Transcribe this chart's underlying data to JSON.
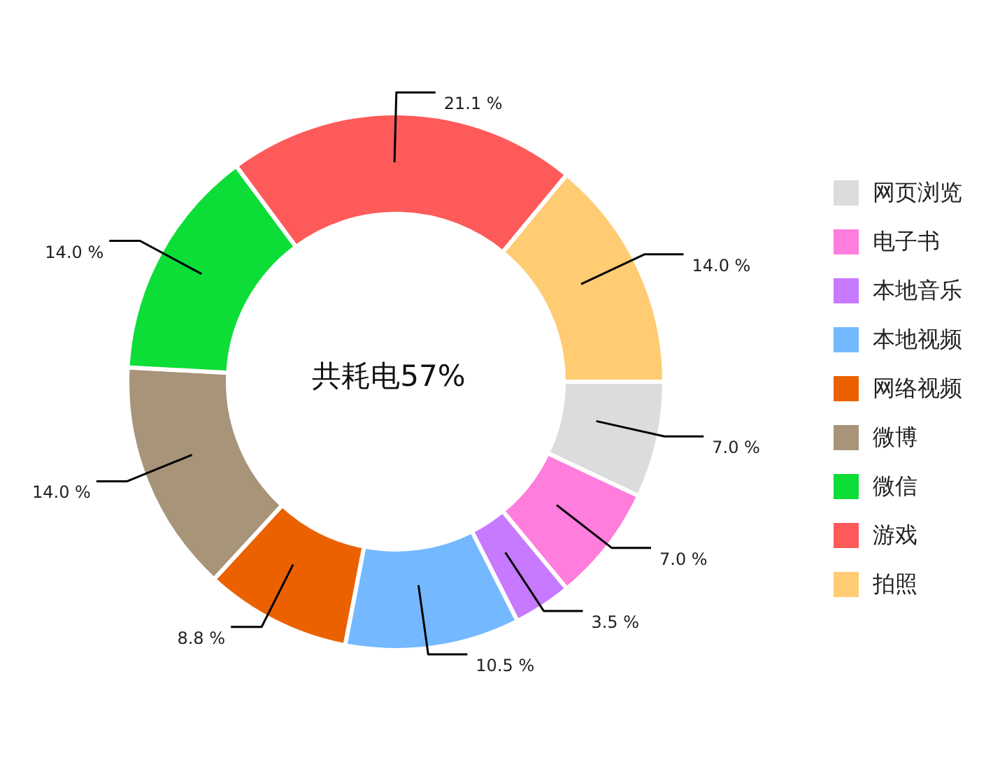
{
  "chart_data": {
    "type": "donut",
    "categories": [
      "网页浏览",
      "电子书",
      "本地音乐",
      "本地视频",
      "网络视频",
      "微博",
      "微信",
      "游戏",
      "拍照"
    ],
    "values": [
      7,
      7,
      3.5,
      10.5,
      8.8,
      14,
      14,
      21.1,
      14
    ],
    "value_labels": [
      "7.0 %",
      "7.0 %",
      "3.5 %",
      "10.5 %",
      "8.8 %",
      "14.0 %",
      "14.0 %",
      "21.1 %",
      "14.0 %"
    ],
    "colors": [
      "#dcdcdc",
      "#ff7ddc",
      "#c779ff",
      "#74b9ff",
      "#eb6100",
      "#a79479",
      "#0ddd37",
      "#ff5a5a",
      "#ffcc73"
    ],
    "annotations": [
      "共耗电57%"
    ],
    "legend": "right"
  }
}
